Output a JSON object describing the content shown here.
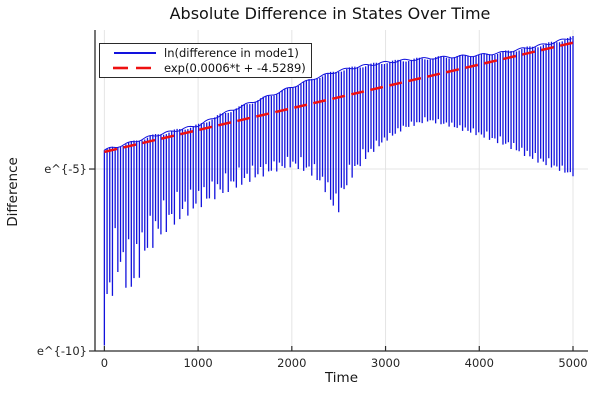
{
  "chart_data": {
    "type": "line",
    "title": "Absolute Difference in States Over Time",
    "xlabel": "Time",
    "ylabel": "Difference",
    "x_axis_range": [
      -100,
      5160
    ],
    "y_axis_range_ln": [
      -10.0,
      -1.18
    ],
    "grid": true,
    "legend_position": "top-left",
    "xticks": [
      {
        "label": "0",
        "value": 0
      },
      {
        "label": "1000",
        "value": 1000
      },
      {
        "label": "2000",
        "value": 2000
      },
      {
        "label": "3000",
        "value": 3000
      },
      {
        "label": "4000",
        "value": 4000
      },
      {
        "label": "5000",
        "value": 5000
      }
    ],
    "yticks": [
      {
        "label": "e^{-5}",
        "value": -5
      },
      {
        "label": "e^{-10}",
        "value": -10
      }
    ],
    "series": [
      {
        "name": "ln(difference in mode1)",
        "style": "oscillatory",
        "color": "#1212dd",
        "cycles": 175,
        "t_range": [
          0,
          5000
        ],
        "upper_envelope_ln": [
          [
            0,
            -4.48
          ],
          [
            250,
            -4.3
          ],
          [
            500,
            -4.1
          ],
          [
            750,
            -3.95
          ],
          [
            1000,
            -3.8
          ],
          [
            1250,
            -3.5
          ],
          [
            1500,
            -3.24
          ],
          [
            1750,
            -3.0
          ],
          [
            2000,
            -2.75
          ],
          [
            2250,
            -2.5
          ],
          [
            2500,
            -2.3
          ],
          [
            2750,
            -2.17
          ],
          [
            3000,
            -2.07
          ],
          [
            3250,
            -2.0
          ],
          [
            3500,
            -1.95
          ],
          [
            3750,
            -1.91
          ],
          [
            4000,
            -1.87
          ],
          [
            4250,
            -1.8
          ],
          [
            4500,
            -1.68
          ],
          [
            4750,
            -1.55
          ],
          [
            5000,
            -1.38
          ]
        ],
        "trough_shallow_ln": [
          [
            0,
            -5.45
          ],
          [
            400,
            -5.15
          ],
          [
            800,
            -4.9
          ],
          [
            1200,
            -4.65
          ],
          [
            1600,
            -4.45
          ],
          [
            2000,
            -4.35
          ],
          [
            2250,
            -4.45
          ],
          [
            2450,
            -4.9
          ],
          [
            2600,
            -4.45
          ],
          [
            2800,
            -4.1
          ],
          [
            3000,
            -3.85
          ],
          [
            3200,
            -3.6
          ],
          [
            3450,
            -3.45
          ],
          [
            3700,
            -3.55
          ],
          [
            4000,
            -3.75
          ],
          [
            4300,
            -3.95
          ],
          [
            4600,
            -4.3
          ],
          [
            4800,
            -4.6
          ],
          [
            5000,
            -4.95
          ]
        ],
        "trough_deep_ln": [
          [
            0,
            -9.85
          ],
          [
            130,
            -7.9
          ],
          [
            300,
            -8.55
          ],
          [
            450,
            -7.4
          ],
          [
            600,
            -6.9
          ],
          [
            800,
            -6.45
          ],
          [
            1000,
            -6.1
          ],
          [
            1200,
            -5.8
          ],
          [
            1400,
            -5.55
          ],
          [
            1600,
            -5.3
          ],
          [
            1800,
            -5.1
          ],
          [
            2000,
            -4.95
          ],
          [
            2200,
            -5.15
          ],
          [
            2350,
            -5.6
          ],
          [
            2480,
            -6.35
          ],
          [
            2600,
            -5.4
          ],
          [
            2800,
            -4.7
          ],
          [
            3000,
            -4.25
          ],
          [
            3200,
            -3.9
          ],
          [
            3450,
            -3.7
          ],
          [
            3700,
            -3.85
          ],
          [
            4000,
            -4.1
          ],
          [
            4300,
            -4.4
          ],
          [
            4600,
            -4.8
          ],
          [
            4800,
            -5.0
          ],
          [
            5000,
            -5.2
          ]
        ]
      },
      {
        "name": "exp(0.0006*t + -4.5289)",
        "style": "dashed-linear-ln",
        "color": "#ee1010",
        "slope": 0.0006,
        "intercept": -4.5289,
        "t_range": [
          0,
          5000
        ]
      }
    ]
  }
}
